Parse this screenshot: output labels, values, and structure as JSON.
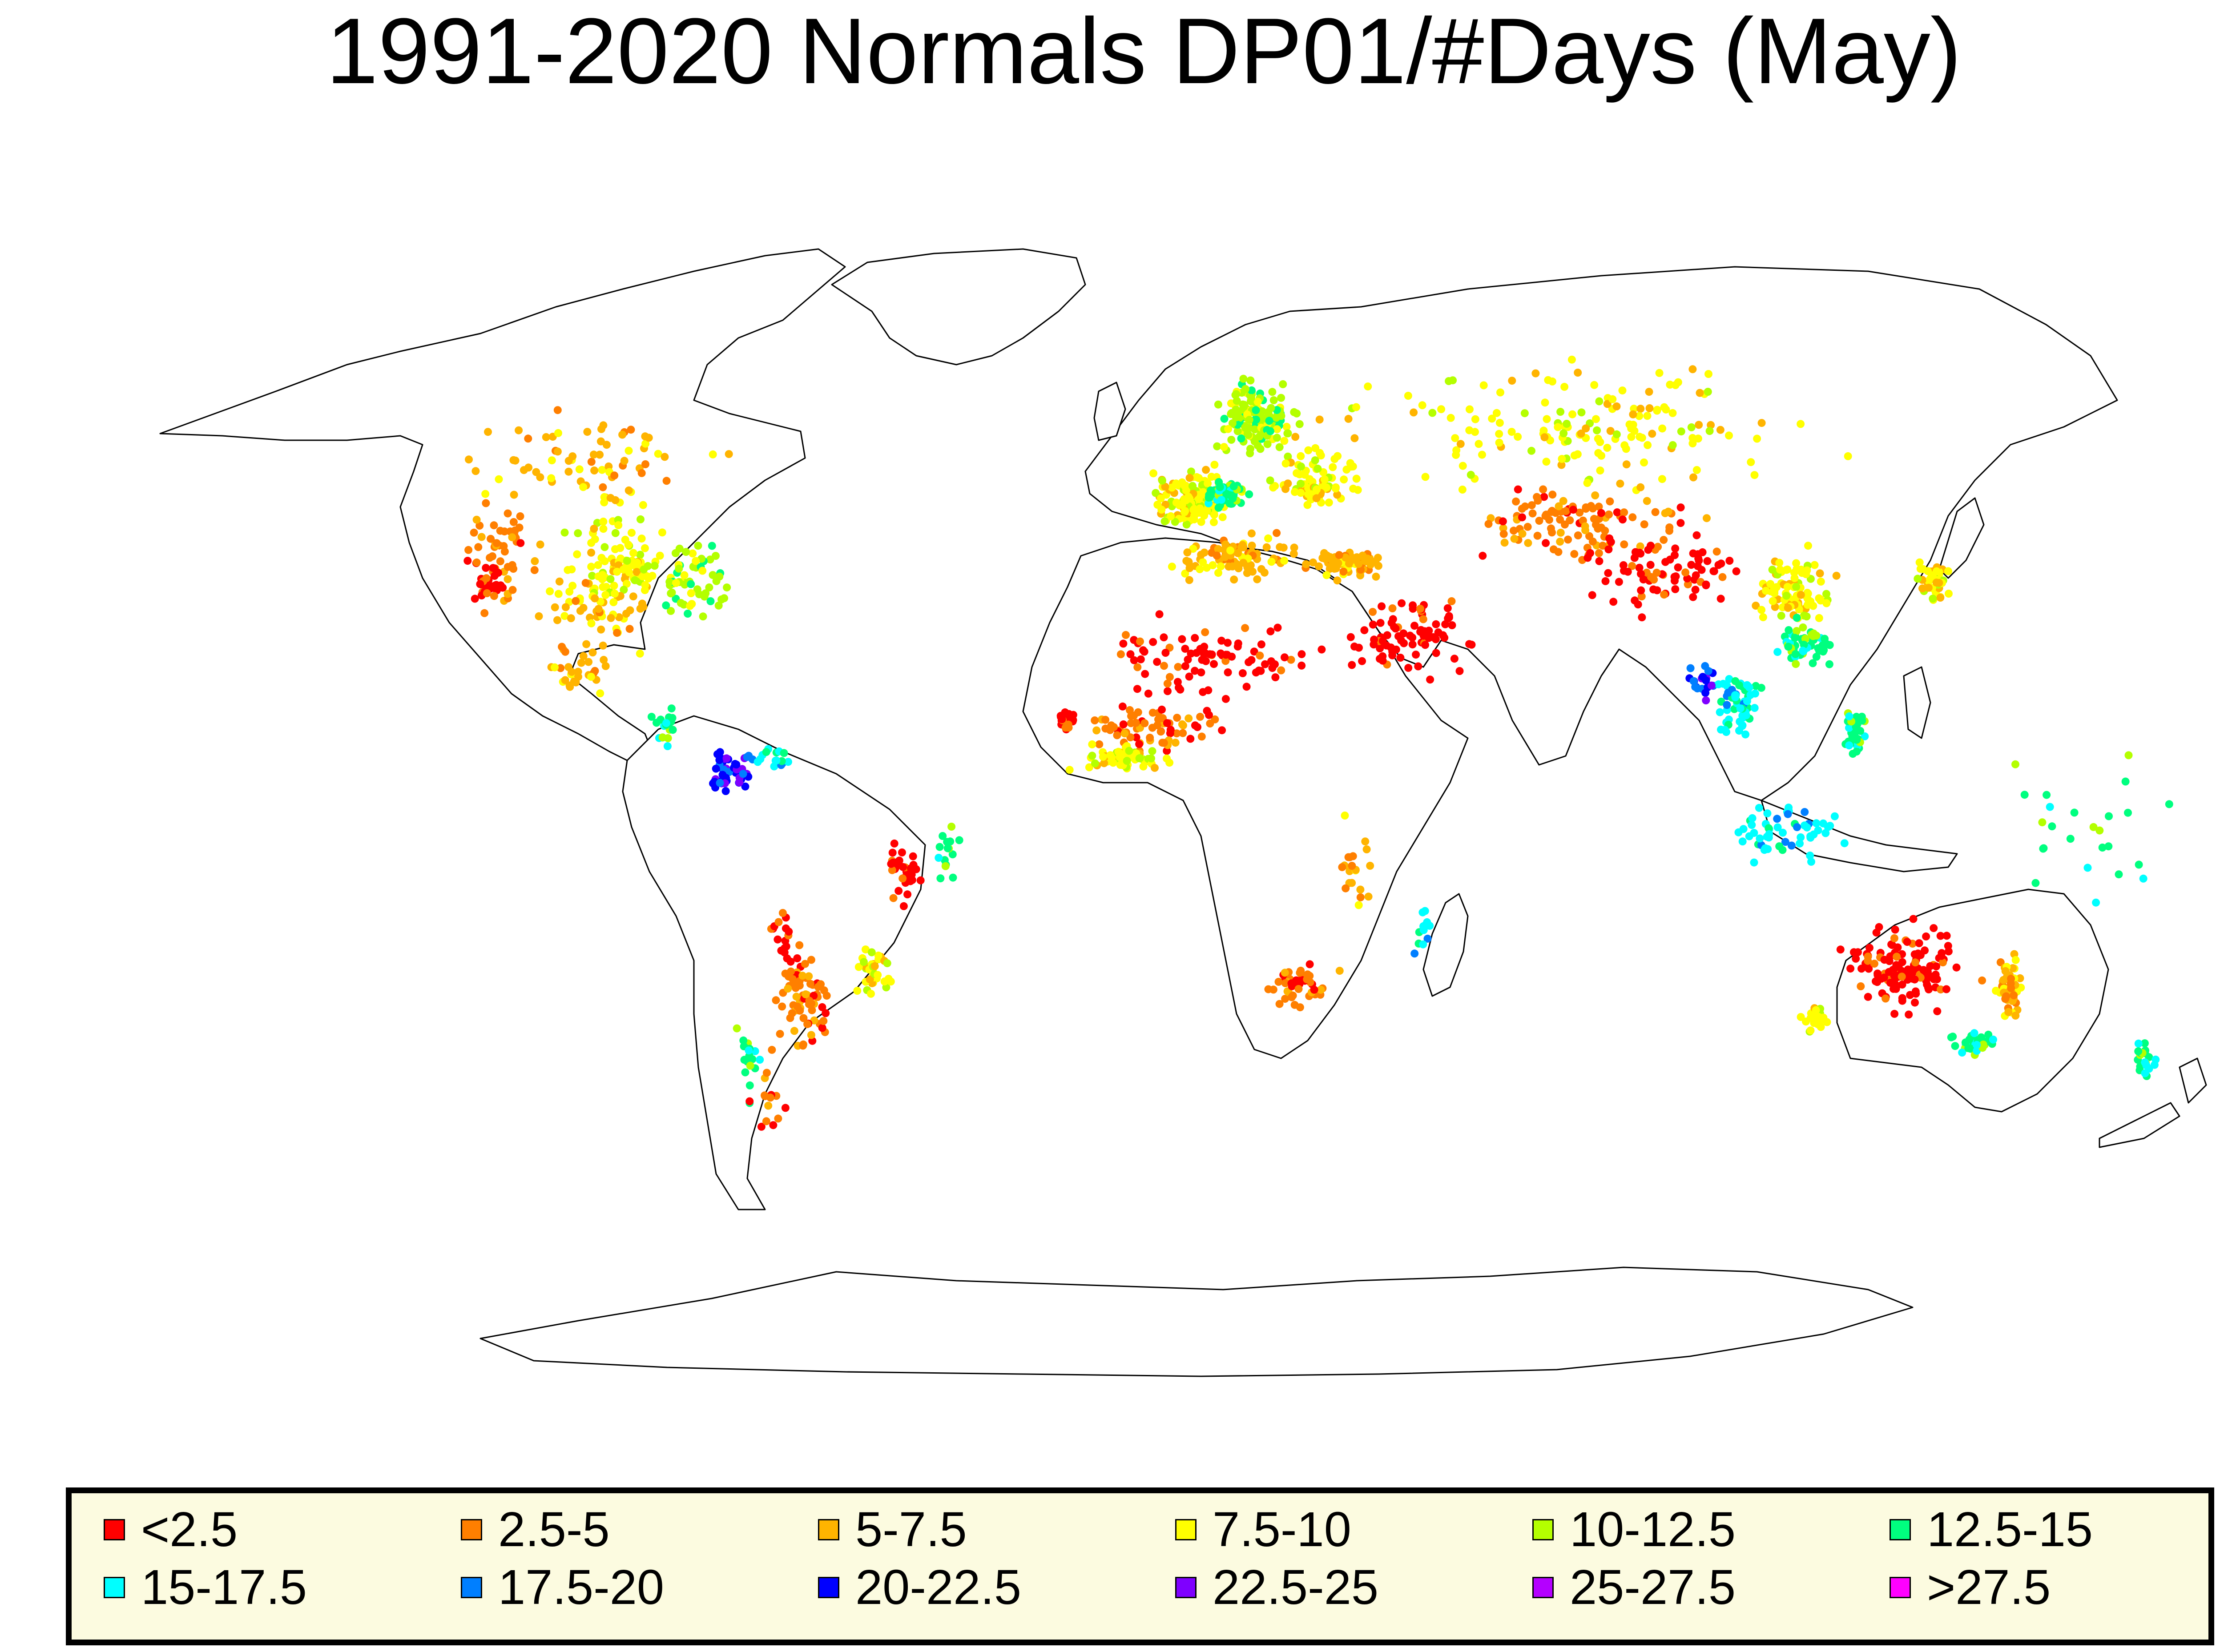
{
  "title": "1991-2020 Normals DP01/#Days (May)",
  "map": {
    "projection": "robinson-like world map",
    "land_fill": "#ffffff",
    "outline_color": "#000000",
    "marker": "filled circle station dot"
  },
  "legend": {
    "background": "#fcfbe0",
    "items": [
      {
        "label": "<2.5",
        "color": "#ff0000"
      },
      {
        "label": "2.5-5",
        "color": "#ff7f00"
      },
      {
        "label": "5-7.5",
        "color": "#ffb400"
      },
      {
        "label": "7.5-10",
        "color": "#ffff00"
      },
      {
        "label": "10-12.5",
        "color": "#b4ff00"
      },
      {
        "label": "12.5-15",
        "color": "#00ff7f"
      },
      {
        "label": "15-17.5",
        "color": "#00ffff"
      },
      {
        "label": "17.5-20",
        "color": "#007fff"
      },
      {
        "label": "20-22.5",
        "color": "#0000ff"
      },
      {
        "label": "22.5-25",
        "color": "#7f00ff"
      },
      {
        "label": "25-27.5",
        "color": "#b400ff"
      },
      {
        "label": ">27.5",
        "color": "#ff00ff"
      }
    ]
  },
  "station_clusters": [
    {
      "region": "Western USA",
      "class": 1,
      "lat": 40,
      "lon": -115,
      "spread": [
        8,
        6
      ],
      "count": 55
    },
    {
      "region": "Central USA",
      "class": 3,
      "lat": 39,
      "lon": -95,
      "spread": [
        9,
        8
      ],
      "count": 110
    },
    {
      "region": "Eastern USA",
      "class": 4,
      "lat": 37,
      "lon": -82,
      "spread": [
        6,
        6
      ],
      "count": 60
    },
    {
      "region": "Southern USA",
      "class": 2,
      "lat": 32,
      "lon": -100,
      "spread": [
        4,
        8
      ],
      "count": 40
    },
    {
      "region": "California",
      "class": 0,
      "lat": 35,
      "lon": -118,
      "spread": [
        3,
        2
      ],
      "count": 25
    },
    {
      "region": "Canada",
      "class": 2,
      "lat": 55,
      "lon": -100,
      "spread": [
        7,
        20
      ],
      "count": 70
    },
    {
      "region": "Mexico",
      "class": 2,
      "lat": 22,
      "lon": -102,
      "spread": [
        4,
        5
      ],
      "count": 30
    },
    {
      "region": "Central America",
      "class": 5,
      "lat": 13,
      "lon": -87,
      "spread": [
        3,
        3
      ],
      "count": 18
    },
    {
      "region": "Colombia",
      "class": 8,
      "lat": 6,
      "lon": -75,
      "spread": [
        3,
        3
      ],
      "count": 45
    },
    {
      "region": "Venezuela",
      "class": 6,
      "lat": 8,
      "lon": -67,
      "spread": [
        2,
        4
      ],
      "count": 18
    },
    {
      "region": "Brazil interior",
      "class": 0,
      "lat": -10,
      "lon": -44,
      "spread": [
        5,
        3
      ],
      "count": 30
    },
    {
      "region": "Brazil coast",
      "class": 5,
      "lat": -7,
      "lon": -37,
      "spread": [
        4,
        2
      ],
      "count": 15
    },
    {
      "region": "Bolivia",
      "class": 0,
      "lat": -20,
      "lon": -66,
      "spread": [
        4,
        3
      ],
      "count": 18
    },
    {
      "region": "Argentina",
      "class": 1,
      "lat": -30,
      "lon": -62,
      "spread": [
        7,
        4
      ],
      "count": 70
    },
    {
      "region": "Southern Brazil",
      "class": 3,
      "lat": -25,
      "lon": -50,
      "spread": [
        4,
        3
      ],
      "count": 35
    },
    {
      "region": "Chile",
      "class": 5,
      "lat": -40,
      "lon": -72,
      "spread": [
        6,
        1.5
      ],
      "count": 18
    },
    {
      "region": "Patagonia",
      "class": 1,
      "lat": -45,
      "lon": -68,
      "spread": [
        5,
        3
      ],
      "count": 15
    },
    {
      "region": "Scandinavia",
      "class": 4,
      "lat": 62,
      "lon": 18,
      "spread": [
        5,
        6
      ],
      "count": 140
    },
    {
      "region": "Western Europe",
      "class": 3,
      "lat": 49,
      "lon": 6,
      "spread": [
        4,
        6
      ],
      "count": 150
    },
    {
      "region": "Central Europe",
      "class": 5,
      "lat": 50,
      "lon": 12,
      "spread": [
        2,
        3
      ],
      "count": 70
    },
    {
      "region": "Eastern Europe",
      "class": 3,
      "lat": 52,
      "lon": 28,
      "spread": [
        5,
        7
      ],
      "count": 80
    },
    {
      "region": "Mediterranean",
      "class": 2,
      "lat": 40,
      "lon": 14,
      "spread": [
        3,
        10
      ],
      "count": 90
    },
    {
      "region": "Turkey",
      "class": 2,
      "lat": 39,
      "lon": 34,
      "spread": [
        2,
        6
      ],
      "count": 80
    },
    {
      "region": "Russia",
      "class": 3,
      "lat": 60,
      "lon": 75,
      "spread": [
        8,
        35
      ],
      "count": 160
    },
    {
      "region": "Central Asia",
      "class": 1,
      "lat": 45,
      "lon": 75,
      "spread": [
        5,
        16
      ],
      "count": 110
    },
    {
      "region": "Sahara",
      "class": 0,
      "lat": 24,
      "lon": 10,
      "spread": [
        6,
        18
      ],
      "count": 90
    },
    {
      "region": "Middle East",
      "class": 0,
      "lat": 27,
      "lon": 45,
      "spread": [
        6,
        10
      ],
      "count": 80
    },
    {
      "region": "Sahel",
      "class": 1,
      "lat": 13,
      "lon": 0,
      "spread": [
        3,
        12
      ],
      "count": 70
    },
    {
      "region": "West Africa coast",
      "class": 3,
      "lat": 8,
      "lon": -5,
      "spread": [
        2,
        8
      ],
      "count": 55
    },
    {
      "region": "Senegal",
      "class": 0,
      "lat": 14,
      "lon": -16,
      "spread": [
        1.5,
        1.5
      ],
      "count": 25
    },
    {
      "region": "Western China",
      "class": 0,
      "lat": 38,
      "lon": 90,
      "spread": [
        5,
        12
      ],
      "count": 80
    },
    {
      "region": "Central China",
      "class": 3,
      "lat": 34,
      "lon": 112,
      "spread": [
        5,
        6
      ],
      "count": 90
    },
    {
      "region": "Southeast China",
      "class": 5,
      "lat": 26,
      "lon": 114,
      "spread": [
        3,
        5
      ],
      "count": 55
    },
    {
      "region": "Japan",
      "class": 3,
      "lat": 36,
      "lon": 137,
      "spread": [
        3,
        3
      ],
      "count": 40
    },
    {
      "region": "Indochina",
      "class": 6,
      "lat": 17,
      "lon": 102,
      "spread": [
        5,
        4
      ],
      "count": 60
    },
    {
      "region": "Myanmar",
      "class": 8,
      "lat": 20,
      "lon": 96,
      "spread": [
        4,
        2
      ],
      "count": 20
    },
    {
      "region": "Philippines",
      "class": 5,
      "lat": 12,
      "lon": 123,
      "spread": [
        4,
        2
      ],
      "count": 35
    },
    {
      "region": "Indonesia",
      "class": 6,
      "lat": -3,
      "lon": 110,
      "spread": [
        4,
        10
      ],
      "count": 55
    },
    {
      "region": "Australia interior",
      "class": 0,
      "lat": -25,
      "lon": 132,
      "spread": [
        6,
        10
      ],
      "count": 130
    },
    {
      "region": "Eastern Australia",
      "class": 2,
      "lat": -28,
      "lon": 150,
      "spread": [
        5,
        2
      ],
      "count": 55
    },
    {
      "region": "Southern Australia",
      "class": 5,
      "lat": -37,
      "lon": 144,
      "spread": [
        1.5,
        4
      ],
      "count": 30
    },
    {
      "region": "Southwest Australia",
      "class": 3,
      "lat": -33,
      "lon": 116,
      "spread": [
        2,
        2
      ],
      "count": 20
    },
    {
      "region": "New Zealand",
      "class": 5,
      "lat": -40,
      "lon": 174,
      "spread": [
        3,
        2
      ],
      "count": 20
    },
    {
      "region": "Southern Africa",
      "class": 1,
      "lat": -28,
      "lon": 25,
      "spread": [
        3,
        5
      ],
      "count": 45
    },
    {
      "region": "East Africa",
      "class": 2,
      "lat": -10,
      "lon": 35,
      "spread": [
        6,
        3
      ],
      "count": 20
    },
    {
      "region": "Madagascar",
      "class": 6,
      "lat": -19,
      "lon": 47,
      "spread": [
        4,
        1.5
      ],
      "count": 12
    },
    {
      "region": "Pacific islands",
      "class": 5,
      "lat": -5,
      "lon": 165,
      "spread": [
        12,
        15
      ],
      "count": 25
    }
  ]
}
